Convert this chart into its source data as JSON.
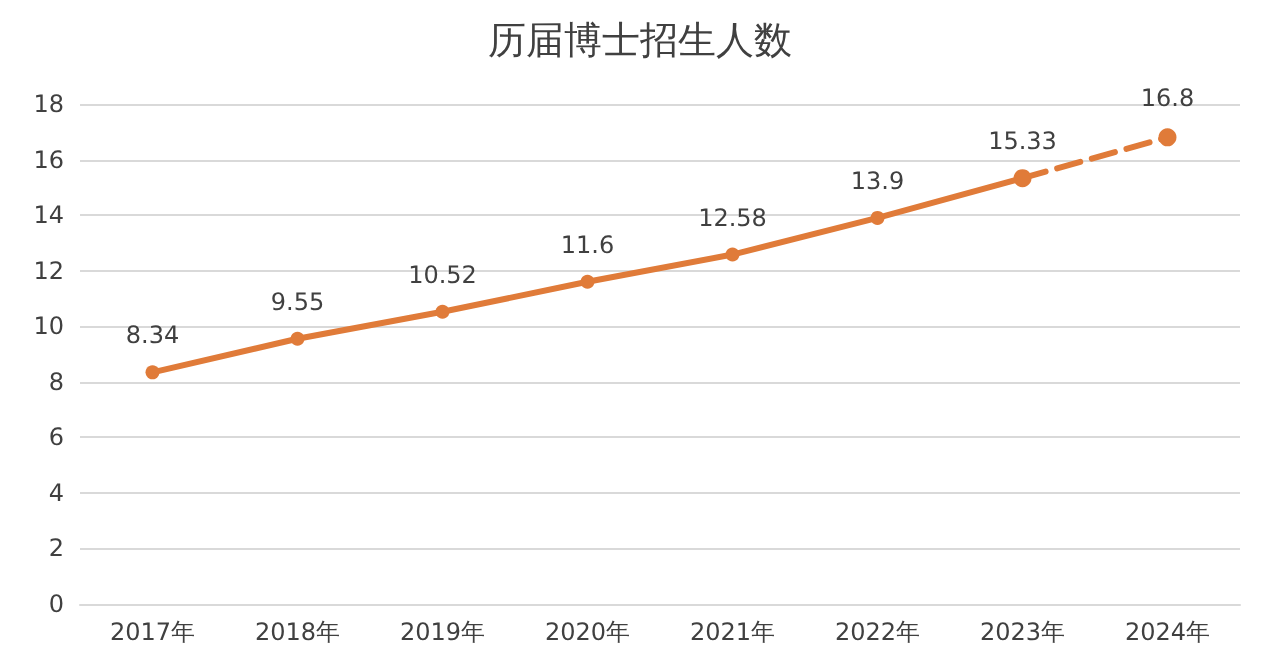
{
  "chart_data": {
    "type": "line",
    "title": "历届博士招生人数",
    "categories": [
      "2017年",
      "2018年",
      "2019年",
      "2020年",
      "2021年",
      "2022年",
      "2023年",
      "2024年"
    ],
    "series": [
      {
        "color": "#e07b39",
        "line_style": "solid",
        "values": [
          8.34,
          9.55,
          10.52,
          11.6,
          12.58,
          13.9,
          15.33,
          null
        ],
        "value_labels": [
          "8.34",
          "9.55",
          "10.52",
          "11.6",
          "12.58",
          "13.9",
          "15.33",
          null
        ]
      },
      {
        "color": "#e07b39",
        "line_style": "dashed",
        "values": [
          null,
          null,
          null,
          null,
          null,
          null,
          15.33,
          16.8
        ],
        "value_labels": [
          null,
          null,
          null,
          null,
          null,
          null,
          null,
          "16.8"
        ]
      }
    ],
    "ylim": [
      0,
      18
    ],
    "yticks": [
      0,
      2,
      4,
      6,
      8,
      10,
      12,
      14,
      16,
      18
    ],
    "grid": "y",
    "marker": "circle"
  }
}
